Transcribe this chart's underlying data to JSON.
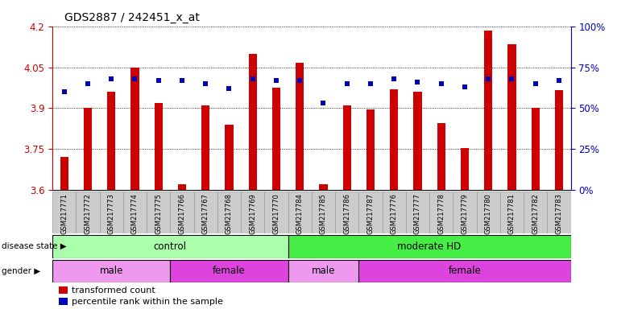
{
  "title": "GDS2887 / 242451_x_at",
  "samples": [
    "GSM217771",
    "GSM217772",
    "GSM217773",
    "GSM217774",
    "GSM217775",
    "GSM217766",
    "GSM217767",
    "GSM217768",
    "GSM217769",
    "GSM217770",
    "GSM217784",
    "GSM217785",
    "GSM217786",
    "GSM217787",
    "GSM217776",
    "GSM217777",
    "GSM217778",
    "GSM217779",
    "GSM217780",
    "GSM217781",
    "GSM217782",
    "GSM217783"
  ],
  "bar_values": [
    3.72,
    3.9,
    3.96,
    4.048,
    3.92,
    3.62,
    3.91,
    3.84,
    4.1,
    3.975,
    4.065,
    3.62,
    3.91,
    3.895,
    3.97,
    3.96,
    3.845,
    3.755,
    4.185,
    4.135,
    3.9,
    3.965
  ],
  "percentile_values": [
    60,
    65,
    68,
    68,
    67,
    67,
    65,
    62,
    68,
    67,
    67,
    53,
    65,
    65,
    68,
    66,
    65,
    63,
    68,
    68,
    65,
    67
  ],
  "ymin": 3.6,
  "ymax": 4.2,
  "yticks": [
    3.6,
    3.75,
    3.9,
    4.05,
    4.2
  ],
  "right_yticks": [
    0,
    25,
    50,
    75,
    100
  ],
  "bar_color": "#CC0000",
  "dot_color": "#0000BB",
  "bg_color": "#FFFFFF",
  "disease_state_groups": [
    {
      "label": "control",
      "start": 0,
      "end": 10,
      "color": "#AAFFAA"
    },
    {
      "label": "moderate HD",
      "start": 10,
      "end": 22,
      "color": "#44EE44"
    }
  ],
  "gender_groups": [
    {
      "label": "male",
      "start": 0,
      "end": 5,
      "color": "#EE99EE"
    },
    {
      "label": "female",
      "start": 5,
      "end": 10,
      "color": "#DD44DD"
    },
    {
      "label": "male",
      "start": 10,
      "end": 13,
      "color": "#EE99EE"
    },
    {
      "label": "female",
      "start": 13,
      "end": 22,
      "color": "#DD44DD"
    }
  ],
  "left_axis_color": "#CC0000",
  "right_axis_color": "#0000BB"
}
